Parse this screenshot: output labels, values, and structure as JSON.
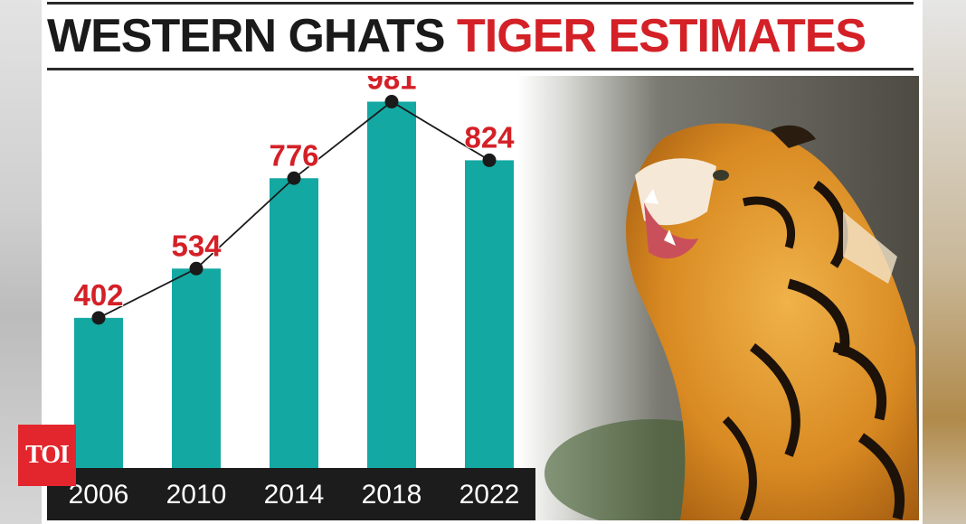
{
  "title": {
    "part1": "WESTERN GHATS",
    "part2": "TIGER ESTIMATES"
  },
  "logo": {
    "text": "TOI"
  },
  "colors": {
    "bar": "#14a8a3",
    "value_label": "#d42027",
    "line": "#1a1a1a",
    "title_dark": "#1a1a1a",
    "title_red": "#d42027",
    "year_strip": "#1c1c1c",
    "year_text": "#ffffff"
  },
  "chart_data": {
    "type": "bar",
    "categories": [
      "2006",
      "2010",
      "2014",
      "2018",
      "2022"
    ],
    "values": [
      402,
      534,
      776,
      981,
      824
    ],
    "title": "WESTERN GHATS TIGER ESTIMATES",
    "xlabel": "",
    "ylabel": "",
    "ylim": [
      0,
      1050
    ],
    "overlay_line": true,
    "data_labels": true,
    "grid": false,
    "legend": "none"
  }
}
